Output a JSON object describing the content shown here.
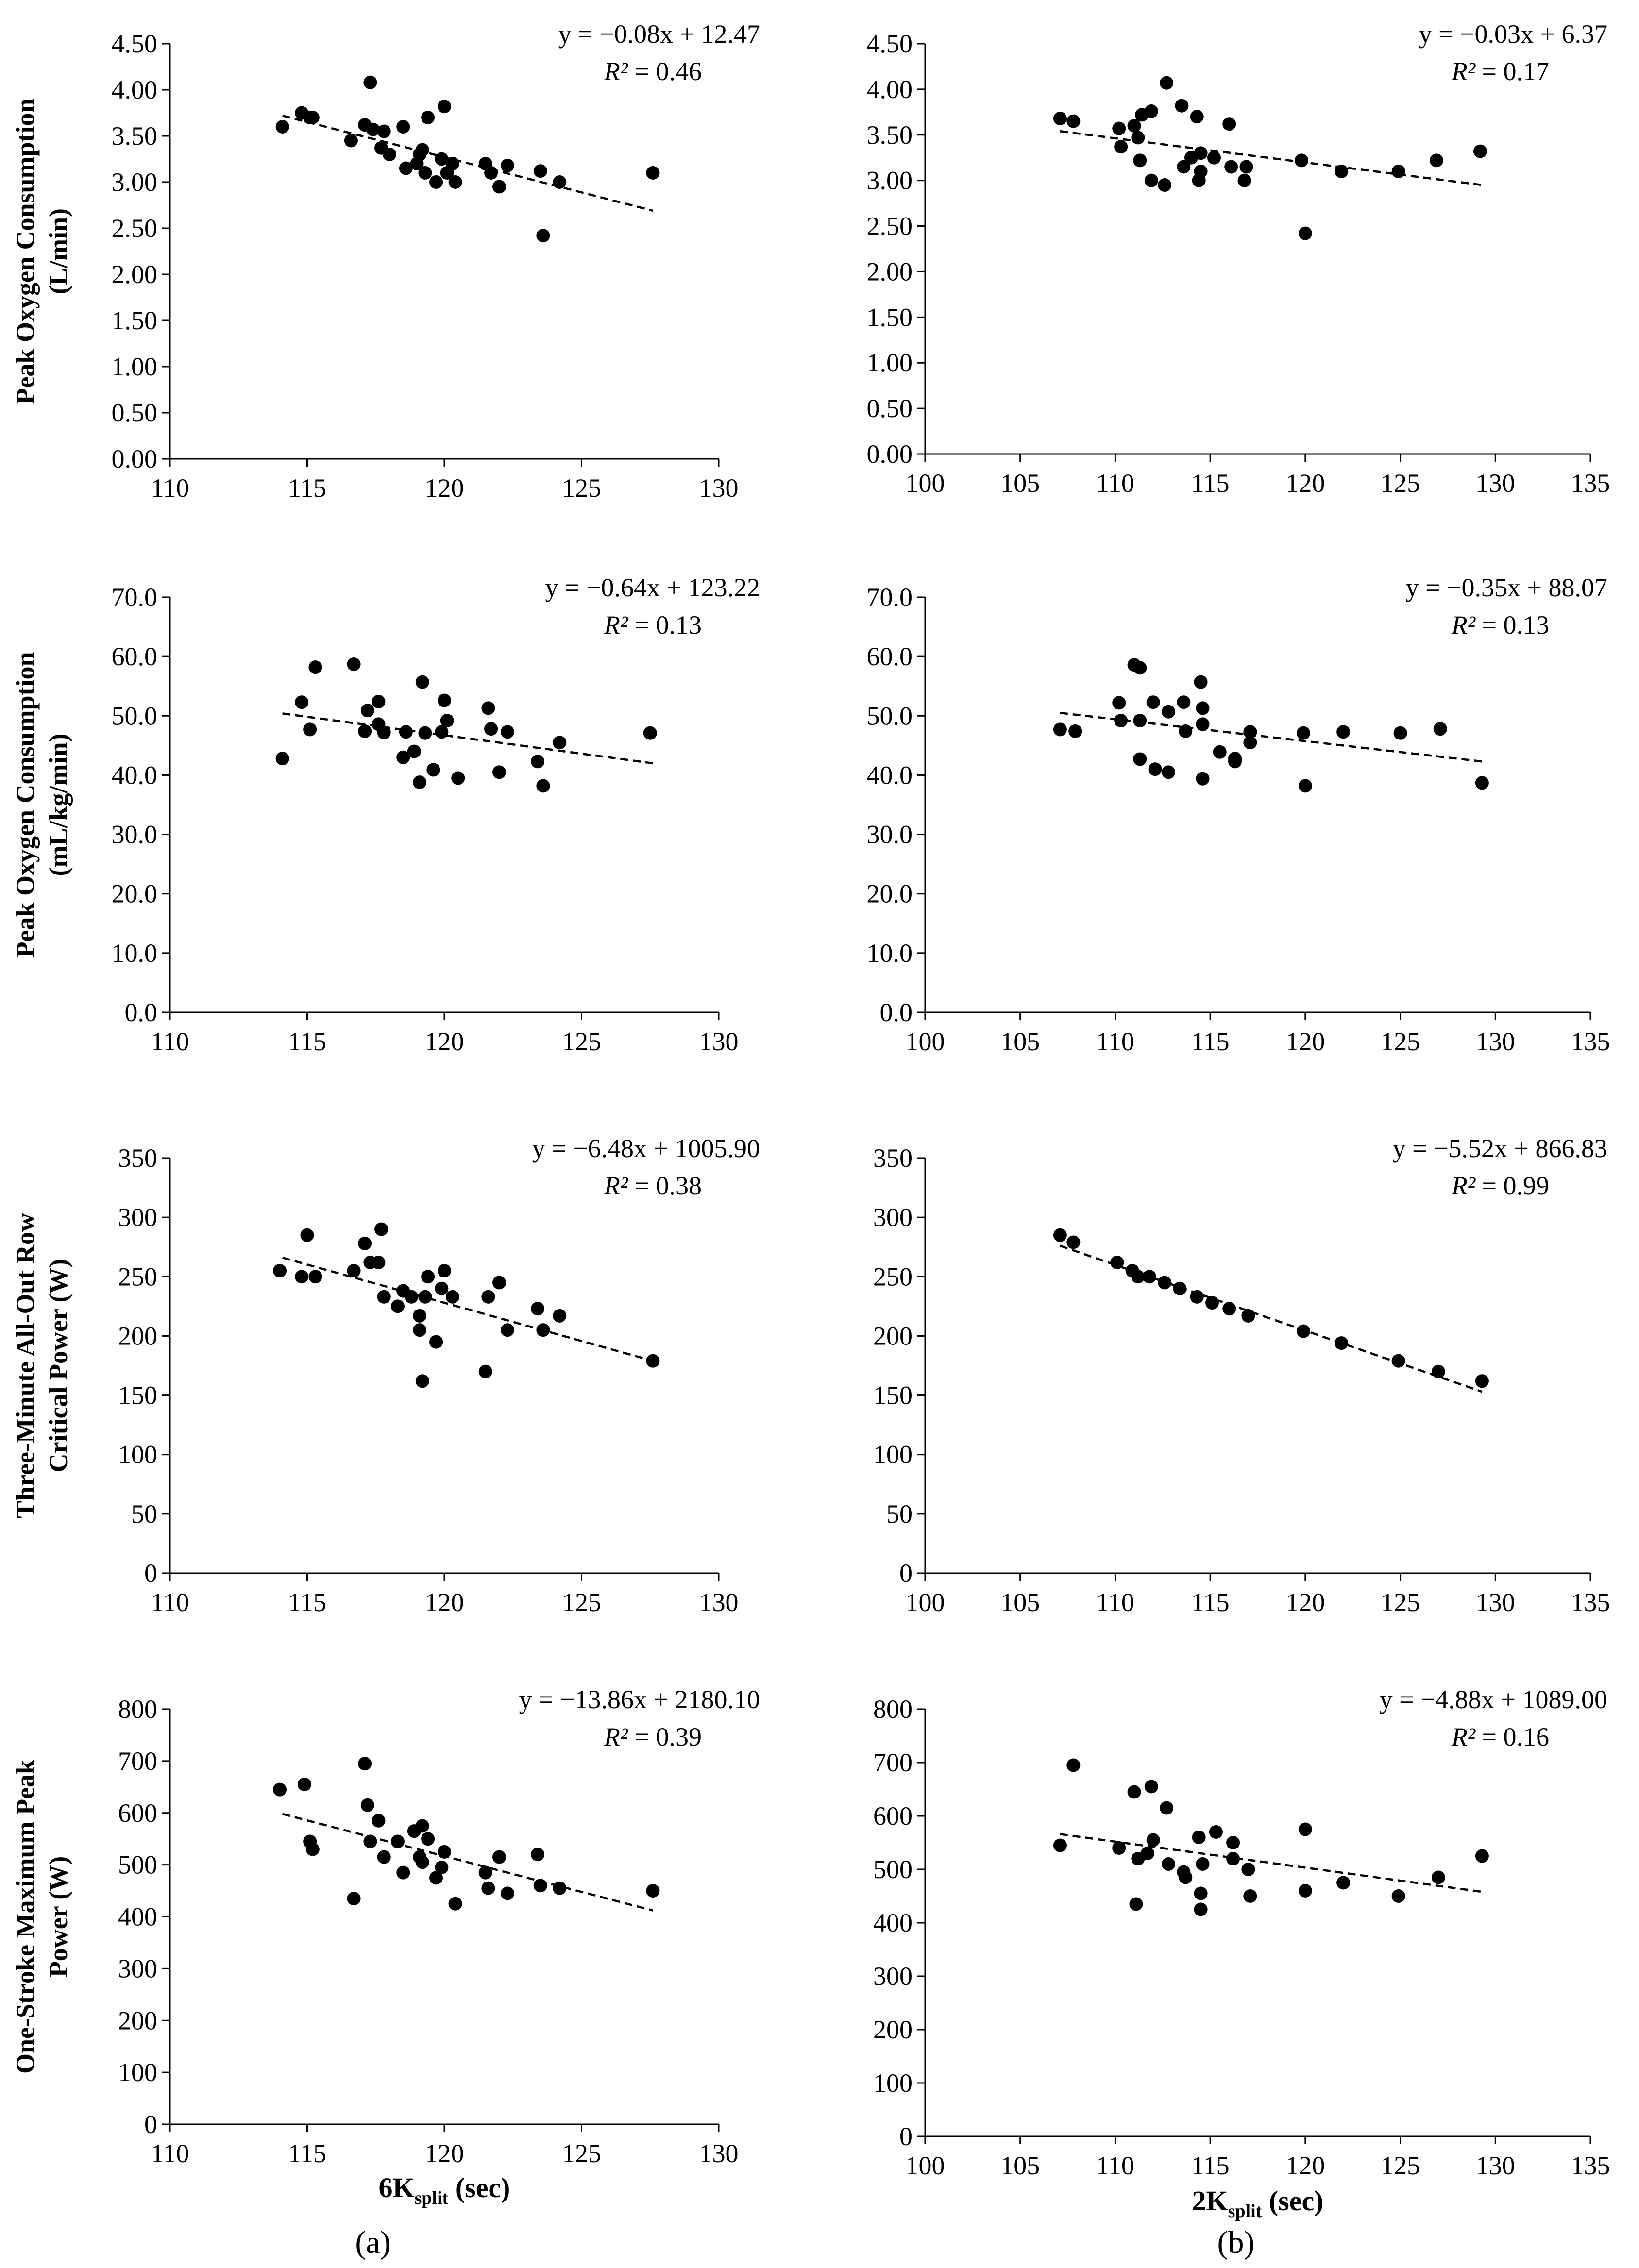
{
  "panel_labels": {
    "a": "(a)",
    "b": "(b)"
  },
  "x_labels": {
    "left": {
      "main": "6K",
      "sub": "split",
      "tail": " (sec)"
    },
    "right": {
      "main": "2K",
      "sub": "split",
      "tail": " (sec)"
    }
  },
  "row_ylabels": [
    [
      "Peak Oxygen Consumption",
      "(L/min)"
    ],
    [
      "Peak Oxygen Consumption",
      "(mL/kg/min)"
    ],
    [
      "Three-Minute All-Out Row",
      "Critical Power (W)"
    ],
    [
      "One-Stroke Maximum Peak",
      "Power (W)"
    ]
  ],
  "chart_data": [
    {
      "type": "scatter",
      "row": 0,
      "col": 0,
      "xlim": [
        110,
        130
      ],
      "xticks": [
        110,
        115,
        120,
        125,
        130
      ],
      "ylim": [
        0,
        4.5
      ],
      "yticks": [
        0,
        0.5,
        1,
        1.5,
        2,
        2.5,
        3,
        3.5,
        4,
        4.5
      ],
      "ydecimals": 2,
      "equation": "y = −0.08x + 12.47",
      "r2_label": "R²",
      "r2_text": " = 0.46",
      "trend": {
        "x": [
          114.1,
          127.6
        ],
        "y": [
          3.72,
          2.69
        ]
      },
      "points": [
        [
          114.1,
          3.6
        ],
        [
          114.8,
          3.75
        ],
        [
          115.1,
          3.7
        ],
        [
          115.2,
          3.7
        ],
        [
          116.6,
          3.45
        ],
        [
          117.1,
          3.62
        ],
        [
          117.3,
          4.08
        ],
        [
          117.4,
          3.57
        ],
        [
          117.7,
          3.37
        ],
        [
          117.8,
          3.55
        ],
        [
          118.0,
          3.3
        ],
        [
          118.5,
          3.6
        ],
        [
          118.6,
          3.15
        ],
        [
          119.0,
          3.2
        ],
        [
          119.1,
          3.3
        ],
        [
          119.2,
          3.35
        ],
        [
          119.3,
          3.1
        ],
        [
          119.4,
          3.7
        ],
        [
          119.7,
          3.0
        ],
        [
          119.9,
          3.25
        ],
        [
          120.0,
          3.82
        ],
        [
          120.1,
          3.1
        ],
        [
          120.3,
          3.2
        ],
        [
          120.4,
          3.0
        ],
        [
          121.5,
          3.2
        ],
        [
          121.7,
          3.1
        ],
        [
          122.0,
          2.95
        ],
        [
          122.3,
          3.18
        ],
        [
          123.5,
          3.12
        ],
        [
          123.6,
          2.42
        ],
        [
          124.2,
          3.0
        ],
        [
          127.6,
          3.1
        ]
      ]
    },
    {
      "type": "scatter",
      "row": 0,
      "col": 1,
      "xlim": [
        100,
        135
      ],
      "xticks": [
        100,
        105,
        110,
        115,
        120,
        125,
        130,
        135
      ],
      "ylim": [
        0,
        4.5
      ],
      "yticks": [
        0,
        0.5,
        1,
        1.5,
        2,
        2.5,
        3,
        3.5,
        4,
        4.5
      ],
      "ydecimals": 2,
      "equation": "y = −0.03x + 6.37",
      "r2_label": "R²",
      "r2_text": " = 0.17",
      "trend": {
        "x": [
          107.1,
          129.3
        ],
        "y": [
          3.54,
          2.95
        ]
      },
      "points": [
        [
          107.1,
          3.68
        ],
        [
          107.8,
          3.65
        ],
        [
          110.2,
          3.57
        ],
        [
          110.3,
          3.37
        ],
        [
          111.0,
          3.6
        ],
        [
          111.2,
          3.47
        ],
        [
          111.3,
          3.22
        ],
        [
          111.4,
          3.72
        ],
        [
          111.9,
          3.76
        ],
        [
          111.9,
          3.0
        ],
        [
          112.6,
          2.95
        ],
        [
          112.7,
          4.07
        ],
        [
          113.5,
          3.82
        ],
        [
          113.6,
          3.15
        ],
        [
          114.0,
          3.25
        ],
        [
          114.3,
          3.7
        ],
        [
          114.4,
          3.0
        ],
        [
          114.5,
          3.1
        ],
        [
          114.5,
          3.3
        ],
        [
          115.2,
          3.25
        ],
        [
          116.0,
          3.62
        ],
        [
          116.1,
          3.15
        ],
        [
          116.8,
          3.0
        ],
        [
          116.9,
          3.15
        ],
        [
          119.8,
          3.22
        ],
        [
          120.0,
          2.42
        ],
        [
          121.9,
          3.1
        ],
        [
          124.9,
          3.1
        ],
        [
          126.9,
          3.22
        ],
        [
          129.2,
          3.32
        ]
      ]
    },
    {
      "type": "scatter",
      "row": 1,
      "col": 0,
      "xlim": [
        110,
        130
      ],
      "xticks": [
        110,
        115,
        120,
        125,
        130
      ],
      "ylim": [
        0,
        70
      ],
      "yticks": [
        0,
        10,
        20,
        30,
        40,
        50,
        60,
        70
      ],
      "ydecimals": 1,
      "equation": "y = −0.64x + 123.22",
      "r2_label": "R²",
      "r2_text": " = 0.13",
      "trend": {
        "x": [
          114.1,
          127.6
        ],
        "y": [
          50.4,
          42.0
        ]
      },
      "points": [
        [
          114.1,
          42.8
        ],
        [
          114.8,
          52.3
        ],
        [
          115.1,
          47.7
        ],
        [
          115.3,
          58.2
        ],
        [
          116.7,
          58.7
        ],
        [
          117.1,
          47.4
        ],
        [
          117.2,
          50.9
        ],
        [
          117.6,
          52.4
        ],
        [
          117.6,
          48.6
        ],
        [
          117.8,
          47.2
        ],
        [
          118.5,
          43.0
        ],
        [
          118.6,
          47.3
        ],
        [
          118.9,
          44.0
        ],
        [
          119.1,
          38.8
        ],
        [
          119.2,
          55.7
        ],
        [
          119.3,
          47.1
        ],
        [
          119.6,
          40.9
        ],
        [
          119.9,
          47.3
        ],
        [
          120.0,
          52.6
        ],
        [
          120.1,
          49.2
        ],
        [
          120.5,
          39.5
        ],
        [
          121.6,
          51.3
        ],
        [
          121.7,
          47.8
        ],
        [
          122.0,
          40.5
        ],
        [
          122.3,
          47.3
        ],
        [
          123.4,
          42.3
        ],
        [
          123.6,
          38.2
        ],
        [
          124.2,
          45.5
        ],
        [
          127.5,
          47.1
        ]
      ]
    },
    {
      "type": "scatter",
      "row": 1,
      "col": 1,
      "xlim": [
        100,
        135
      ],
      "xticks": [
        100,
        105,
        110,
        115,
        120,
        125,
        130,
        135
      ],
      "ylim": [
        0,
        70
      ],
      "yticks": [
        0,
        10,
        20,
        30,
        40,
        50,
        60,
        70
      ],
      "ydecimals": 1,
      "equation": "y = −0.35x + 88.07",
      "r2_label": "R²",
      "r2_text": " = 0.13",
      "trend": {
        "x": [
          107.1,
          129.3
        ],
        "y": [
          50.5,
          42.3
        ]
      },
      "points": [
        [
          107.1,
          47.7
        ],
        [
          107.9,
          47.4
        ],
        [
          110.2,
          52.2
        ],
        [
          110.3,
          49.2
        ],
        [
          111.0,
          58.6
        ],
        [
          111.3,
          58.1
        ],
        [
          111.3,
          42.7
        ],
        [
          111.3,
          49.2
        ],
        [
          112.0,
          52.3
        ],
        [
          112.1,
          41.0
        ],
        [
          112.8,
          50.7
        ],
        [
          112.8,
          40.5
        ],
        [
          113.6,
          52.3
        ],
        [
          113.7,
          47.4
        ],
        [
          114.5,
          55.7
        ],
        [
          114.6,
          51.3
        ],
        [
          114.6,
          48.6
        ],
        [
          114.6,
          39.4
        ],
        [
          115.5,
          43.9
        ],
        [
          116.3,
          42.8
        ],
        [
          116.3,
          42.3
        ],
        [
          117.1,
          47.3
        ],
        [
          117.1,
          45.5
        ],
        [
          119.9,
          47.1
        ],
        [
          120.0,
          38.2
        ],
        [
          122.0,
          47.3
        ],
        [
          125.0,
          47.1
        ],
        [
          127.1,
          47.8
        ],
        [
          129.3,
          38.7
        ]
      ]
    },
    {
      "type": "scatter",
      "row": 2,
      "col": 0,
      "xlim": [
        110,
        130
      ],
      "xticks": [
        110,
        115,
        120,
        125,
        130
      ],
      "ylim": [
        0,
        350
      ],
      "yticks": [
        0,
        50,
        100,
        150,
        200,
        250,
        300,
        350
      ],
      "ydecimals": 0,
      "equation": "y = −6.48x + 1005.90",
      "r2_label": "R²",
      "r2_text": " = 0.38",
      "trend": {
        "x": [
          114.1,
          127.6
        ],
        "y": [
          266,
          179
        ]
      },
      "points": [
        [
          114.0,
          255
        ],
        [
          114.8,
          250
        ],
        [
          115.0,
          285
        ],
        [
          115.3,
          250
        ],
        [
          116.7,
          255
        ],
        [
          117.1,
          278
        ],
        [
          117.3,
          262
        ],
        [
          117.6,
          262
        ],
        [
          117.7,
          290
        ],
        [
          117.8,
          233
        ],
        [
          118.3,
          225
        ],
        [
          118.5,
          238
        ],
        [
          118.8,
          233
        ],
        [
          119.1,
          217
        ],
        [
          119.1,
          205
        ],
        [
          119.2,
          162
        ],
        [
          119.3,
          233
        ],
        [
          119.4,
          250
        ],
        [
          119.7,
          195
        ],
        [
          119.9,
          240
        ],
        [
          120.0,
          255
        ],
        [
          120.3,
          233
        ],
        [
          121.5,
          170
        ],
        [
          121.6,
          233
        ],
        [
          122.0,
          245
        ],
        [
          122.3,
          205
        ],
        [
          123.4,
          223
        ],
        [
          123.6,
          205
        ],
        [
          124.2,
          217
        ],
        [
          127.6,
          179
        ]
      ]
    },
    {
      "type": "scatter",
      "row": 2,
      "col": 1,
      "xlim": [
        100,
        135
      ],
      "xticks": [
        100,
        105,
        110,
        115,
        120,
        125,
        130,
        135
      ],
      "ylim": [
        0,
        350
      ],
      "yticks": [
        0,
        50,
        100,
        150,
        200,
        250,
        300,
        350
      ],
      "ydecimals": 0,
      "equation": "y = −5.52x + 866.83",
      "r2_label": "R²",
      "r2_text": " = 0.99",
      "trend": {
        "x": [
          107.1,
          129.3
        ],
        "y": [
          276,
          153
        ]
      },
      "points": [
        [
          107.1,
          285
        ],
        [
          107.8,
          279
        ],
        [
          110.1,
          262
        ],
        [
          110.9,
          255
        ],
        [
          111.2,
          250
        ],
        [
          111.8,
          250
        ],
        [
          112.6,
          245
        ],
        [
          113.4,
          240
        ],
        [
          114.3,
          233
        ],
        [
          115.1,
          228
        ],
        [
          116.0,
          223
        ],
        [
          117.0,
          217
        ],
        [
          119.9,
          204
        ],
        [
          121.9,
          194
        ],
        [
          124.9,
          179
        ],
        [
          127.0,
          170
        ],
        [
          129.3,
          162
        ]
      ]
    },
    {
      "type": "scatter",
      "row": 3,
      "col": 0,
      "xlim": [
        110,
        130
      ],
      "xticks": [
        110,
        115,
        120,
        125,
        130
      ],
      "ylim": [
        0,
        800
      ],
      "yticks": [
        0,
        100,
        200,
        300,
        400,
        500,
        600,
        700,
        800
      ],
      "ydecimals": 0,
      "equation": "y = −13.86x + 2180.10",
      "r2_label": "R²",
      "r2_text": " = 0.39",
      "trend": {
        "x": [
          114.1,
          127.6
        ],
        "y": [
          598,
          412
        ]
      },
      "points": [
        [
          114.0,
          645
        ],
        [
          114.9,
          655
        ],
        [
          115.1,
          545
        ],
        [
          115.2,
          530
        ],
        [
          116.7,
          435
        ],
        [
          117.1,
          695
        ],
        [
          117.2,
          615
        ],
        [
          117.3,
          545
        ],
        [
          117.6,
          585
        ],
        [
          117.8,
          515
        ],
        [
          118.3,
          545
        ],
        [
          118.5,
          485
        ],
        [
          118.9,
          565
        ],
        [
          119.1,
          515
        ],
        [
          119.2,
          575
        ],
        [
          119.2,
          505
        ],
        [
          119.4,
          550
        ],
        [
          119.7,
          475
        ],
        [
          119.9,
          495
        ],
        [
          120.0,
          525
        ],
        [
          120.4,
          425
        ],
        [
          121.5,
          485
        ],
        [
          121.6,
          455
        ],
        [
          122.0,
          515
        ],
        [
          122.3,
          445
        ],
        [
          123.4,
          520
        ],
        [
          123.5,
          460
        ],
        [
          124.2,
          455
        ],
        [
          127.6,
          450
        ]
      ]
    },
    {
      "type": "scatter",
      "row": 3,
      "col": 1,
      "xlim": [
        100,
        135
      ],
      "xticks": [
        100,
        105,
        110,
        115,
        120,
        125,
        130,
        135
      ],
      "ylim": [
        0,
        800
      ],
      "yticks": [
        0,
        100,
        200,
        300,
        400,
        500,
        600,
        700,
        800
      ],
      "ydecimals": 0,
      "equation": "y = −4.88x + 1089.00",
      "r2_label": "R²",
      "r2_text": " = 0.16",
      "trend": {
        "x": [
          107.1,
          129.3
        ],
        "y": [
          566,
          458
        ]
      },
      "points": [
        [
          107.1,
          545
        ],
        [
          107.8,
          695
        ],
        [
          110.2,
          540
        ],
        [
          111.0,
          645
        ],
        [
          111.1,
          435
        ],
        [
          111.2,
          520
        ],
        [
          111.7,
          530
        ],
        [
          111.9,
          655
        ],
        [
          112.0,
          555
        ],
        [
          112.7,
          615
        ],
        [
          112.8,
          510
        ],
        [
          113.6,
          495
        ],
        [
          113.7,
          485
        ],
        [
          114.4,
          560
        ],
        [
          114.5,
          455
        ],
        [
          114.5,
          425
        ],
        [
          114.6,
          510
        ],
        [
          115.3,
          570
        ],
        [
          116.2,
          550
        ],
        [
          116.2,
          520
        ],
        [
          117.0,
          500
        ],
        [
          117.1,
          450
        ],
        [
          120.0,
          575
        ],
        [
          120.0,
          460
        ],
        [
          122.0,
          475
        ],
        [
          124.9,
          450
        ],
        [
          127.0,
          485
        ],
        [
          129.3,
          525
        ]
      ]
    }
  ]
}
